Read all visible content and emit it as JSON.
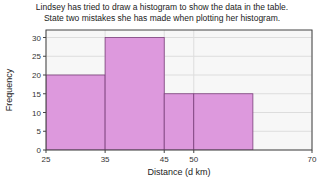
{
  "chart_data": {
    "type": "histogram",
    "title": "Lindsey has tried to draw a histogram to show the data in the table.",
    "subtitle": "State two mistakes she has made when plotting her histogram.",
    "xlabel": "Distance (d km)",
    "ylabel": "Frequency",
    "bins": [
      25,
      35,
      45,
      50,
      60,
      70
    ],
    "values": [
      20,
      30,
      15,
      15,
      0
    ],
    "color": "#dd99dd",
    "xlim": [
      25,
      70
    ],
    "ylim": [
      0,
      32
    ],
    "xticks": [
      25,
      35,
      45,
      50,
      70
    ],
    "yticks": [
      0,
      5,
      10,
      15,
      20,
      25,
      30
    ],
    "grid": true
  }
}
